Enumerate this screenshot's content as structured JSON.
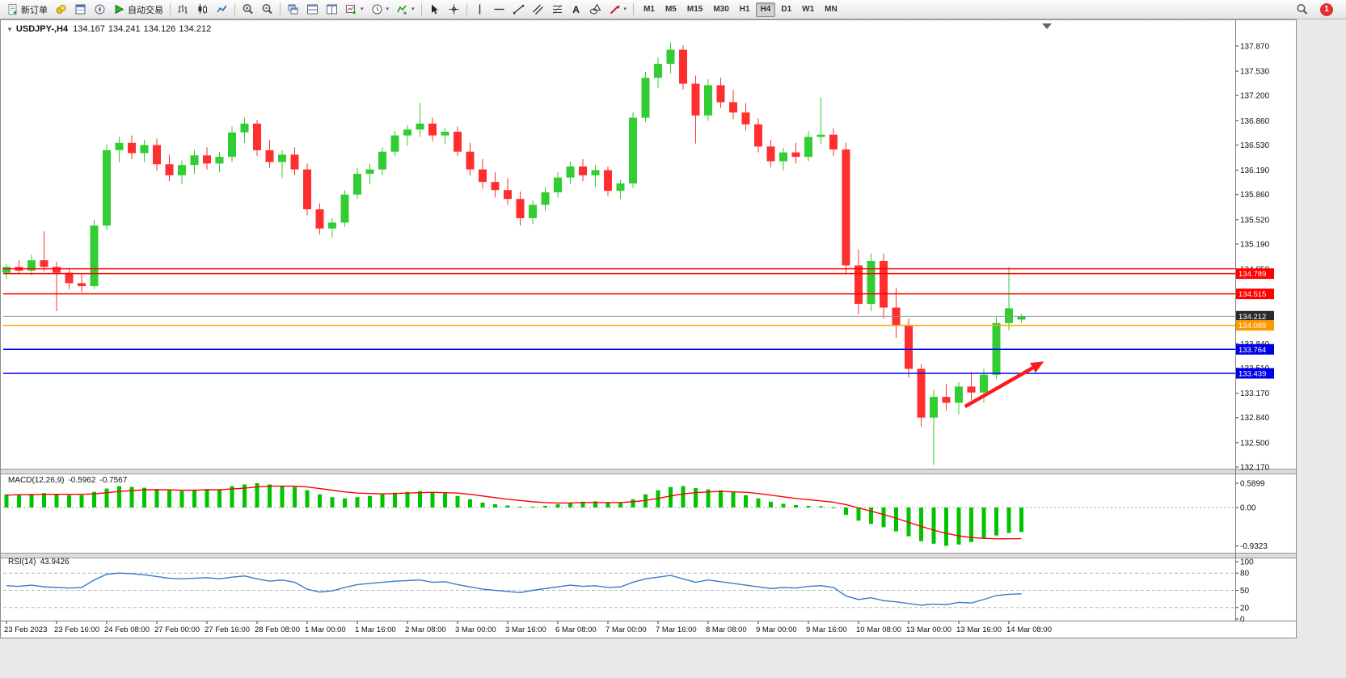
{
  "toolbar": {
    "new_order_label": "新订单",
    "auto_trading_label": "自动交易",
    "text_tool_label": "A",
    "timeframes": [
      "M1",
      "M5",
      "M15",
      "M30",
      "H1",
      "H4",
      "D1",
      "W1",
      "MN"
    ],
    "active_timeframe": "H4",
    "notification_count": "1"
  },
  "chart": {
    "symbol_period": "USDJPY-,H4",
    "open": "134.167",
    "high": "134.241",
    "low": "134.126",
    "close": "134.212"
  },
  "chart_data": {
    "type": "candlestick",
    "symbol": "USDJPY-",
    "timeframe": "H4",
    "up_color": "#32CD32",
    "down_color": "#FF2F2F",
    "price_axis": {
      "min": 132.17,
      "max": 137.87,
      "ticks": [
        "137.870",
        "137.530",
        "137.200",
        "136.860",
        "136.530",
        "136.190",
        "135.860",
        "135.520",
        "135.190",
        "134.850",
        "134.510",
        "134.180",
        "133.840",
        "133.510",
        "133.170",
        "132.840",
        "132.500",
        "132.170"
      ]
    },
    "time_labels": [
      "23 Feb 2023",
      "23 Feb 16:00",
      "24 Feb 08:00",
      "27 Feb 00:00",
      "27 Feb 16:00",
      "28 Feb 08:00",
      "1 Mar 00:00",
      "1 Mar 16:00",
      "2 Mar 08:00",
      "3 Mar 00:00",
      "3 Mar 16:00",
      "6 Mar 08:00",
      "7 Mar 00:00",
      "7 Mar 16:00",
      "8 Mar 08:00",
      "9 Mar 00:00",
      "9 Mar 16:00",
      "10 Mar 08:00",
      "13 Mar 00:00",
      "13 Mar 16:00",
      "14 Mar 08:00"
    ],
    "candles_ohlc": [
      [
        134.8,
        134.92,
        134.72,
        134.88
      ],
      [
        134.88,
        134.97,
        134.78,
        134.83
      ],
      [
        134.83,
        135.05,
        134.76,
        134.97
      ],
      [
        134.97,
        135.36,
        134.82,
        134.88
      ],
      [
        134.88,
        134.95,
        134.28,
        134.8
      ],
      [
        134.8,
        134.87,
        134.58,
        134.66
      ],
      [
        134.66,
        134.78,
        134.54,
        134.62
      ],
      [
        134.62,
        135.52,
        134.58,
        135.44
      ],
      [
        135.44,
        136.54,
        135.38,
        136.46
      ],
      [
        136.46,
        136.64,
        136.3,
        136.56
      ],
      [
        136.56,
        136.66,
        136.34,
        136.42
      ],
      [
        136.42,
        136.6,
        136.3,
        136.53
      ],
      [
        136.53,
        136.62,
        136.18,
        136.27
      ],
      [
        136.27,
        136.4,
        136.04,
        136.12
      ],
      [
        136.12,
        136.32,
        136.0,
        136.26
      ],
      [
        136.26,
        136.46,
        136.14,
        136.39
      ],
      [
        136.39,
        136.5,
        136.2,
        136.28
      ],
      [
        136.28,
        136.44,
        136.16,
        136.37
      ],
      [
        136.37,
        136.78,
        136.3,
        136.7
      ],
      [
        136.7,
        136.9,
        136.56,
        136.82
      ],
      [
        136.82,
        136.87,
        136.38,
        136.46
      ],
      [
        136.46,
        136.6,
        136.22,
        136.3
      ],
      [
        136.3,
        136.46,
        136.08,
        136.4
      ],
      [
        136.4,
        136.5,
        136.12,
        136.2
      ],
      [
        136.2,
        136.28,
        135.58,
        135.66
      ],
      [
        135.66,
        135.74,
        135.32,
        135.4
      ],
      [
        135.4,
        135.54,
        135.28,
        135.48
      ],
      [
        135.48,
        135.92,
        135.42,
        135.86
      ],
      [
        135.86,
        136.22,
        135.8,
        136.14
      ],
      [
        136.14,
        136.28,
        136.0,
        136.2
      ],
      [
        136.2,
        136.5,
        136.12,
        136.44
      ],
      [
        136.44,
        136.72,
        136.38,
        136.66
      ],
      [
        136.66,
        136.8,
        136.52,
        136.74
      ],
      [
        136.74,
        137.1,
        136.64,
        136.82
      ],
      [
        136.82,
        136.9,
        136.58,
        136.66
      ],
      [
        136.66,
        136.76,
        136.54,
        136.71
      ],
      [
        136.71,
        136.78,
        136.38,
        136.44
      ],
      [
        136.44,
        136.56,
        136.12,
        136.2
      ],
      [
        136.2,
        136.34,
        135.94,
        136.03
      ],
      [
        136.03,
        136.16,
        135.82,
        135.92
      ],
      [
        135.92,
        136.08,
        135.72,
        135.8
      ],
      [
        135.8,
        135.9,
        135.44,
        135.54
      ],
      [
        135.54,
        135.78,
        135.46,
        135.72
      ],
      [
        135.72,
        135.96,
        135.64,
        135.89
      ],
      [
        135.89,
        136.16,
        135.82,
        136.09
      ],
      [
        136.09,
        136.31,
        136.0,
        136.24
      ],
      [
        136.24,
        136.34,
        136.04,
        136.12
      ],
      [
        136.12,
        136.26,
        135.96,
        136.19
      ],
      [
        136.19,
        136.24,
        135.84,
        135.91
      ],
      [
        135.91,
        136.06,
        135.8,
        136.01
      ],
      [
        136.01,
        136.97,
        135.95,
        136.9
      ],
      [
        136.9,
        137.52,
        136.84,
        137.44
      ],
      [
        137.44,
        137.72,
        137.3,
        137.63
      ],
      [
        137.63,
        137.92,
        137.5,
        137.82
      ],
      [
        137.82,
        137.88,
        137.28,
        137.36
      ],
      [
        137.36,
        137.47,
        136.55,
        136.93
      ],
      [
        136.93,
        137.42,
        136.86,
        137.34
      ],
      [
        137.34,
        137.44,
        137.03,
        137.11
      ],
      [
        137.11,
        137.28,
        136.88,
        136.97
      ],
      [
        136.97,
        137.1,
        136.73,
        136.81
      ],
      [
        136.81,
        136.89,
        136.43,
        136.51
      ],
      [
        136.51,
        136.6,
        136.23,
        136.31
      ],
      [
        136.31,
        136.49,
        136.19,
        136.43
      ],
      [
        136.43,
        136.56,
        136.28,
        136.37
      ],
      [
        136.37,
        136.72,
        136.31,
        136.64
      ],
      [
        136.64,
        137.18,
        136.54,
        136.67
      ],
      [
        136.67,
        136.76,
        136.38,
        136.47
      ],
      [
        136.47,
        136.56,
        134.78,
        134.9
      ],
      [
        134.9,
        135.12,
        134.24,
        134.38
      ],
      [
        134.38,
        135.06,
        134.28,
        134.96
      ],
      [
        134.96,
        135.06,
        134.18,
        134.33
      ],
      [
        134.33,
        134.6,
        133.92,
        134.08
      ],
      [
        134.08,
        134.18,
        133.38,
        133.5
      ],
      [
        133.5,
        133.56,
        132.72,
        132.84
      ],
      [
        132.84,
        133.22,
        132.2,
        133.12
      ],
      [
        133.12,
        133.3,
        132.94,
        133.04
      ],
      [
        133.04,
        133.32,
        132.88,
        133.26
      ],
      [
        133.26,
        133.46,
        133.08,
        133.18
      ],
      [
        133.18,
        133.5,
        133.04,
        133.42
      ],
      [
        133.42,
        134.2,
        133.36,
        134.12
      ],
      [
        134.12,
        134.88,
        134.02,
        134.32
      ],
      [
        134.167,
        134.241,
        134.126,
        134.212
      ]
    ],
    "hlines": [
      {
        "price": 134.855,
        "color": "#FF0000",
        "label": "",
        "box_color": ""
      },
      {
        "price": 134.789,
        "color": "#FF0000",
        "label": "134.789",
        "box_color": "#FF0000"
      },
      {
        "price": 134.515,
        "color": "#FF0000",
        "label": "134.515",
        "box_color": "#FF0000"
      },
      {
        "price": 134.212,
        "color": "#909090",
        "label": "134.212",
        "box_color": "#2B2B2B",
        "role": "current-price"
      },
      {
        "price": 134.089,
        "color": "#FFA500",
        "label": "134.089",
        "box_color": "#FF9900"
      },
      {
        "price": 133.764,
        "color": "#0000FF",
        "label": "133.764",
        "box_color": "#0000E6"
      },
      {
        "price": 133.439,
        "color": "#0000FF",
        "label": "133.439",
        "box_color": "#0000E6"
      }
    ],
    "trend_arrow": {
      "from_candle": 76.5,
      "from_price": 132.99,
      "to_candle": 82.8,
      "to_price": 133.6,
      "color": "#FF1A1A"
    },
    "macd": {
      "label": "MACD(12,26,9)",
      "main_value": "-0.5962",
      "signal_value": "-0.7567",
      "axis_labels": [
        "0.5899",
        "0.00",
        "-0.9323"
      ],
      "histogram_color": "#00C400",
      "signal_color": "#FF0000",
      "histogram": [
        0.32,
        0.3,
        0.33,
        0.35,
        0.33,
        0.3,
        0.3,
        0.38,
        0.46,
        0.52,
        0.5,
        0.48,
        0.45,
        0.42,
        0.4,
        0.42,
        0.45,
        0.44,
        0.52,
        0.56,
        0.5899,
        0.56,
        0.53,
        0.5,
        0.42,
        0.32,
        0.25,
        0.22,
        0.25,
        0.28,
        0.32,
        0.36,
        0.38,
        0.4,
        0.38,
        0.35,
        0.28,
        0.2,
        0.12,
        0.08,
        0.05,
        0.02,
        0.02,
        0.04,
        0.08,
        0.12,
        0.14,
        0.15,
        0.13,
        0.12,
        0.2,
        0.32,
        0.42,
        0.5,
        0.52,
        0.47,
        0.44,
        0.42,
        0.37,
        0.3,
        0.22,
        0.14,
        0.09,
        0.06,
        0.04,
        0.03,
        -0.02,
        -0.18,
        -0.32,
        -0.4,
        -0.48,
        -0.58,
        -0.7,
        -0.82,
        -0.88,
        -0.9323,
        -0.9,
        -0.84,
        -0.76,
        -0.68,
        -0.62,
        -0.5962
      ],
      "signal": [
        0.3,
        0.31,
        0.31,
        0.32,
        0.32,
        0.32,
        0.32,
        0.33,
        0.36,
        0.39,
        0.41,
        0.43,
        0.43,
        0.43,
        0.42,
        0.42,
        0.43,
        0.43,
        0.45,
        0.47,
        0.5,
        0.52,
        0.52,
        0.52,
        0.5,
        0.46,
        0.42,
        0.38,
        0.35,
        0.34,
        0.33,
        0.34,
        0.35,
        0.36,
        0.37,
        0.36,
        0.35,
        0.32,
        0.28,
        0.24,
        0.2,
        0.17,
        0.14,
        0.12,
        0.11,
        0.11,
        0.12,
        0.12,
        0.12,
        0.12,
        0.14,
        0.17,
        0.22,
        0.28,
        0.33,
        0.36,
        0.38,
        0.39,
        0.38,
        0.37,
        0.34,
        0.3,
        0.26,
        0.22,
        0.19,
        0.16,
        0.13,
        0.07,
        -0.01,
        -0.09,
        -0.17,
        -0.26,
        -0.36,
        -0.46,
        -0.55,
        -0.63,
        -0.69,
        -0.73,
        -0.75,
        -0.76,
        -0.76,
        -0.7567
      ]
    },
    "rsi": {
      "label": "RSI(14)",
      "value": "43.9426",
      "color": "#3A7BC8",
      "levels": [
        80,
        50,
        20
      ],
      "axis_labels": [
        "100",
        "80",
        "50",
        "20",
        "0"
      ],
      "values": [
        58,
        57,
        59,
        56,
        55,
        54,
        55,
        68,
        78,
        80,
        79,
        77,
        74,
        71,
        70,
        71,
        72,
        70,
        73,
        75,
        70,
        66,
        68,
        64,
        52,
        47,
        49,
        55,
        60,
        62,
        64,
        66,
        67,
        68,
        64,
        65,
        60,
        56,
        52,
        50,
        48,
        46,
        50,
        53,
        56,
        59,
        57,
        58,
        55,
        56,
        64,
        70,
        73,
        76,
        70,
        64,
        68,
        65,
        62,
        59,
        56,
        53,
        55,
        54,
        57,
        58,
        55,
        40,
        34,
        37,
        32,
        30,
        27,
        24,
        26,
        25,
        29,
        28,
        34,
        41,
        43,
        43.94
      ]
    }
  }
}
